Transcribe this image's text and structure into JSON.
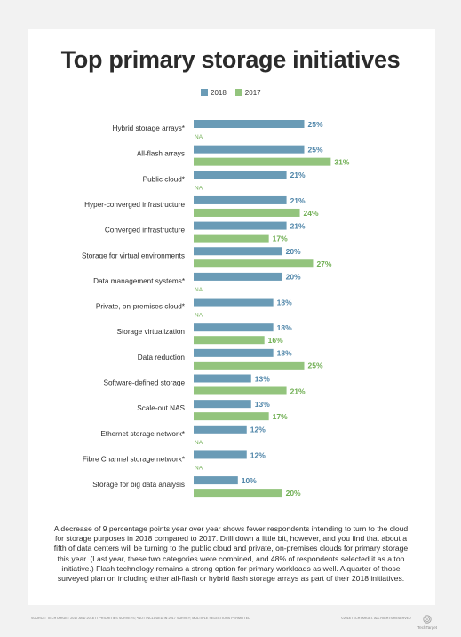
{
  "title": "Top primary storage initiatives",
  "legend": {
    "items": [
      {
        "label": "2018",
        "color": "#6a9bb6"
      },
      {
        "label": "2017",
        "color": "#93c47d"
      }
    ]
  },
  "colors": {
    "series_2018": "#6a9bb6",
    "series_2017": "#93c47d",
    "label_2018": "#4d84a8",
    "label_2017": "#6fae52"
  },
  "chart_data": {
    "type": "bar",
    "orientation": "horizontal",
    "title": "Top primary storage initiatives",
    "categories": [
      "Hybrid storage arrays*",
      "All-flash arrays",
      "Public cloud*",
      "Hyper-converged infrastructure",
      "Converged infrastructure",
      "Storage for virtual environments",
      "Data management systems*",
      "Private, on-premises cloud*",
      "Storage virtualization",
      "Data reduction",
      "Software-defined storage",
      "Scale-out NAS",
      "Ethernet storage network*",
      "Fibre Channel storage network*",
      "Storage for big data analysis"
    ],
    "series": [
      {
        "name": "2018",
        "values": [
          25,
          25,
          21,
          21,
          21,
          20,
          20,
          18,
          18,
          18,
          13,
          13,
          12,
          12,
          10
        ],
        "labels": [
          "25%",
          "25%",
          "21%",
          "21%",
          "21%",
          "20%",
          "20%",
          "18%",
          "18%",
          "18%",
          "13%",
          "13%",
          "12%",
          "12%",
          "10%"
        ]
      },
      {
        "name": "2017",
        "values": [
          null,
          31,
          null,
          24,
          17,
          27,
          null,
          null,
          16,
          25,
          21,
          17,
          null,
          null,
          20
        ],
        "labels": [
          "NA",
          "31%",
          "NA",
          "24%",
          "17%",
          "27%",
          "NA",
          "NA",
          "16%",
          "25%",
          "21%",
          "17%",
          "NA",
          "NA",
          "20%"
        ]
      }
    ],
    "xlim": [
      0,
      31
    ],
    "grid": false,
    "legend_position": "top-center"
  },
  "description": "A decrease of 9 percentage points year over year shows fewer respondents intending to turn to the cloud for storage purposes in 2018 compared to 2017. Drill down a little bit, however, and you find that about a fifth of data centers will be turning to the public cloud and private, on-premises clouds for primary storage this year. (Last year, these two categories were combined, and 48% of respondents selected it as a top initiative.) Flash technology remains a strong option for primary workloads as well. A quarter of those surveyed plan on including either all-flash or hybrid flash storage arrays as part of their 2018 initiatives.",
  "footer": {
    "source": "SOURCE: TECHTARGET 2017 AND 2018 IT PRIORITIES SURVEYS; *NOT INCLUDED IN 2017 SURVEY; MULTIPLE SELECTIONS PERMITTED",
    "copyright": "©2018 TECHTARGET. ALL RIGHTS RESERVED",
    "brand": "TechTarget"
  }
}
